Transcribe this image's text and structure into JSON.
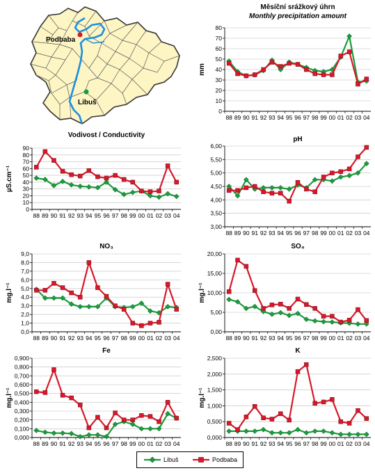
{
  "colors": {
    "libus": "#1a9c3c",
    "podbaba": "#d7182a",
    "river": "#1a8fe0",
    "district_fill": "#fdf5c4",
    "district_stroke": "#333333"
  },
  "map": {
    "labels": {
      "podbaba": "Podbaba",
      "libus": "Libuš"
    }
  },
  "legend": {
    "items": [
      {
        "label": "Libuš",
        "color": "#1a9c3c",
        "marker": "diamond"
      },
      {
        "label": "Podbaba",
        "color": "#d7182a",
        "marker": "square"
      }
    ]
  },
  "chart_data": [
    {
      "id": "precip",
      "type": "line",
      "title": "Měsíční srážkový úhrn",
      "subtitle": "Monthly precipitation amount",
      "ylabel": "mm",
      "categories": [
        "88",
        "89",
        "90",
        "91",
        "92",
        "93",
        "94",
        "95",
        "96",
        "97",
        "98",
        "99",
        "00",
        "01",
        "02",
        "03",
        "04"
      ],
      "ylim": [
        0,
        80
      ],
      "yticks": [
        "0",
        "10",
        "20",
        "30",
        "40",
        "50",
        "60",
        "70",
        "80"
      ],
      "series": [
        {
          "name": "Libuš",
          "values": [
            48,
            38,
            34,
            35,
            39,
            49,
            40,
            47,
            45,
            42,
            39,
            38,
            40,
            52,
            72,
            28,
            29
          ]
        },
        {
          "name": "Podbaba",
          "values": [
            46,
            36,
            34,
            35,
            40,
            47,
            43,
            46,
            45,
            40,
            36,
            35,
            35,
            53,
            57,
            26,
            31
          ]
        }
      ]
    },
    {
      "id": "conductivity",
      "type": "line",
      "title": "Vodivost / Conductivity",
      "ylabel": "µS.cm⁻¹",
      "categories": [
        "88",
        "89",
        "90",
        "91",
        "92",
        "93",
        "94",
        "95",
        "96",
        "97",
        "98",
        "99",
        "00",
        "01",
        "02",
        "03",
        "04"
      ],
      "ylim": [
        0,
        90
      ],
      "yticks": [
        "0",
        "10",
        "20",
        "30",
        "40",
        "50",
        "60",
        "70",
        "80",
        "90"
      ],
      "series": [
        {
          "name": "Libuš",
          "values": [
            46,
            44,
            35,
            41,
            36,
            34,
            33,
            32,
            40,
            29,
            22,
            25,
            27,
            20,
            18,
            23,
            19
          ]
        },
        {
          "name": "Podbaba",
          "values": [
            62,
            85,
            72,
            56,
            51,
            49,
            57,
            48,
            46,
            50,
            44,
            40,
            27,
            26,
            27,
            64,
            40
          ]
        }
      ]
    },
    {
      "id": "ph",
      "type": "line",
      "title": "pH",
      "ylabel": "",
      "categories": [
        "88",
        "89",
        "90",
        "91",
        "92",
        "93",
        "94",
        "95",
        "96",
        "97",
        "98",
        "99",
        "00",
        "01",
        "02",
        "03",
        "04"
      ],
      "ylim": [
        3,
        6
      ],
      "yticks": [
        "3,00",
        "3,50",
        "4,00",
        "4,50",
        "5,00",
        "5,50",
        "6,00"
      ],
      "series": [
        {
          "name": "Libuš",
          "values": [
            4.5,
            4.15,
            4.75,
            4.4,
            4.45,
            4.45,
            4.45,
            4.4,
            4.55,
            4.45,
            4.75,
            4.75,
            4.7,
            4.85,
            4.9,
            5.0,
            5.35
          ]
        },
        {
          "name": "Podbaba",
          "values": [
            4.35,
            4.35,
            4.45,
            4.5,
            4.3,
            4.25,
            4.25,
            3.95,
            4.65,
            4.4,
            4.3,
            4.85,
            5.0,
            5.05,
            5.15,
            5.6,
            5.95
          ]
        }
      ]
    },
    {
      "id": "no3",
      "type": "line",
      "title": "NO₃",
      "ylabel": "mg.l⁻¹",
      "categories": [
        "88",
        "89",
        "90",
        "91",
        "92",
        "93",
        "94",
        "95",
        "96",
        "97",
        "98",
        "99",
        "00",
        "01",
        "02",
        "03",
        "04"
      ],
      "ylim": [
        0,
        9
      ],
      "yticks": [
        "0,0",
        "1,0",
        "2,0",
        "3,0",
        "4,0",
        "5,0",
        "6,0",
        "7,0",
        "8,0",
        "9,0"
      ],
      "series": [
        {
          "name": "Libuš",
          "values": [
            4.9,
            3.9,
            3.9,
            3.9,
            3.2,
            2.9,
            2.9,
            2.9,
            3.9,
            2.9,
            2.8,
            2.9,
            3.3,
            2.4,
            2.2,
            2.9,
            2.8
          ]
        },
        {
          "name": "Podbaba",
          "values": [
            4.8,
            4.8,
            5.6,
            5.1,
            4.5,
            4.0,
            8.0,
            5.1,
            4.1,
            3.0,
            2.6,
            1.0,
            0.7,
            1.0,
            1.1,
            5.5,
            2.6
          ]
        }
      ]
    },
    {
      "id": "so4",
      "type": "line",
      "title": "SO₄",
      "ylabel": "mg.l⁻¹",
      "categories": [
        "88",
        "89",
        "90",
        "91",
        "92",
        "93",
        "94",
        "95",
        "96",
        "97",
        "98",
        "99",
        "00",
        "01",
        "02",
        "03",
        "04"
      ],
      "ylim": [
        0,
        20
      ],
      "yticks": [
        "0,00",
        "5,00",
        "10,00",
        "15,00",
        "20,00"
      ],
      "series": [
        {
          "name": "Libuš",
          "values": [
            8.3,
            7.7,
            6.0,
            6.5,
            5.2,
            4.5,
            4.9,
            4.2,
            4.7,
            3.2,
            2.8,
            2.6,
            2.5,
            2.3,
            2.2,
            2.0,
            2.0
          ]
        },
        {
          "name": "Podbaba",
          "values": [
            10.3,
            18.4,
            16.8,
            10.6,
            6.0,
            6.9,
            7.1,
            6.0,
            8.4,
            7.0,
            6.0,
            4.0,
            4.0,
            2.5,
            3.0,
            5.7,
            2.9
          ]
        }
      ]
    },
    {
      "id": "fe",
      "type": "line",
      "title": "Fe",
      "ylabel": "mg.l⁻¹",
      "categories": [
        "88",
        "89",
        "90",
        "91",
        "92",
        "93",
        "94",
        "95",
        "96",
        "97",
        "98",
        "99",
        "00",
        "01",
        "02",
        "03",
        "04"
      ],
      "ylim": [
        0,
        0.9
      ],
      "yticks": [
        "0,000",
        "0,100",
        "0,200",
        "0,300",
        "0,400",
        "0,500",
        "0,600",
        "0,700",
        "0,800",
        "0,900"
      ],
      "series": [
        {
          "name": "Libuš",
          "values": [
            0.08,
            0.06,
            0.05,
            0.05,
            0.045,
            0.01,
            0.03,
            0.03,
            0.01,
            0.15,
            0.18,
            0.15,
            0.1,
            0.1,
            0.1,
            0.27,
            0.22
          ]
        },
        {
          "name": "Podbaba",
          "values": [
            0.52,
            0.51,
            0.77,
            0.48,
            0.45,
            0.37,
            0.11,
            0.23,
            0.11,
            0.28,
            0.2,
            0.2,
            0.25,
            0.24,
            0.18,
            0.4,
            0.22
          ]
        }
      ]
    },
    {
      "id": "k",
      "type": "line",
      "title": "K",
      "ylabel": "mg.l⁻¹",
      "categories": [
        "88",
        "89",
        "90",
        "91",
        "92",
        "93",
        "94",
        "95",
        "96",
        "97",
        "98",
        "99",
        "00",
        "01",
        "02",
        "03",
        "04"
      ],
      "ylim": [
        0,
        2.5
      ],
      "yticks": [
        "0,000",
        "0,500",
        "1,000",
        "1,500",
        "2,000",
        "2,500"
      ],
      "series": [
        {
          "name": "Libuš",
          "values": [
            0.2,
            0.2,
            0.2,
            0.2,
            0.25,
            0.15,
            0.15,
            0.15,
            0.25,
            0.15,
            0.2,
            0.2,
            0.15,
            0.1,
            0.1,
            0.1,
            0.1
          ]
        },
        {
          "name": "Podbaba",
          "values": [
            0.45,
            0.25,
            0.65,
            0.98,
            0.62,
            0.58,
            0.75,
            0.55,
            2.08,
            2.3,
            1.08,
            1.12,
            1.2,
            0.5,
            0.45,
            0.85,
            0.6
          ]
        }
      ]
    }
  ]
}
